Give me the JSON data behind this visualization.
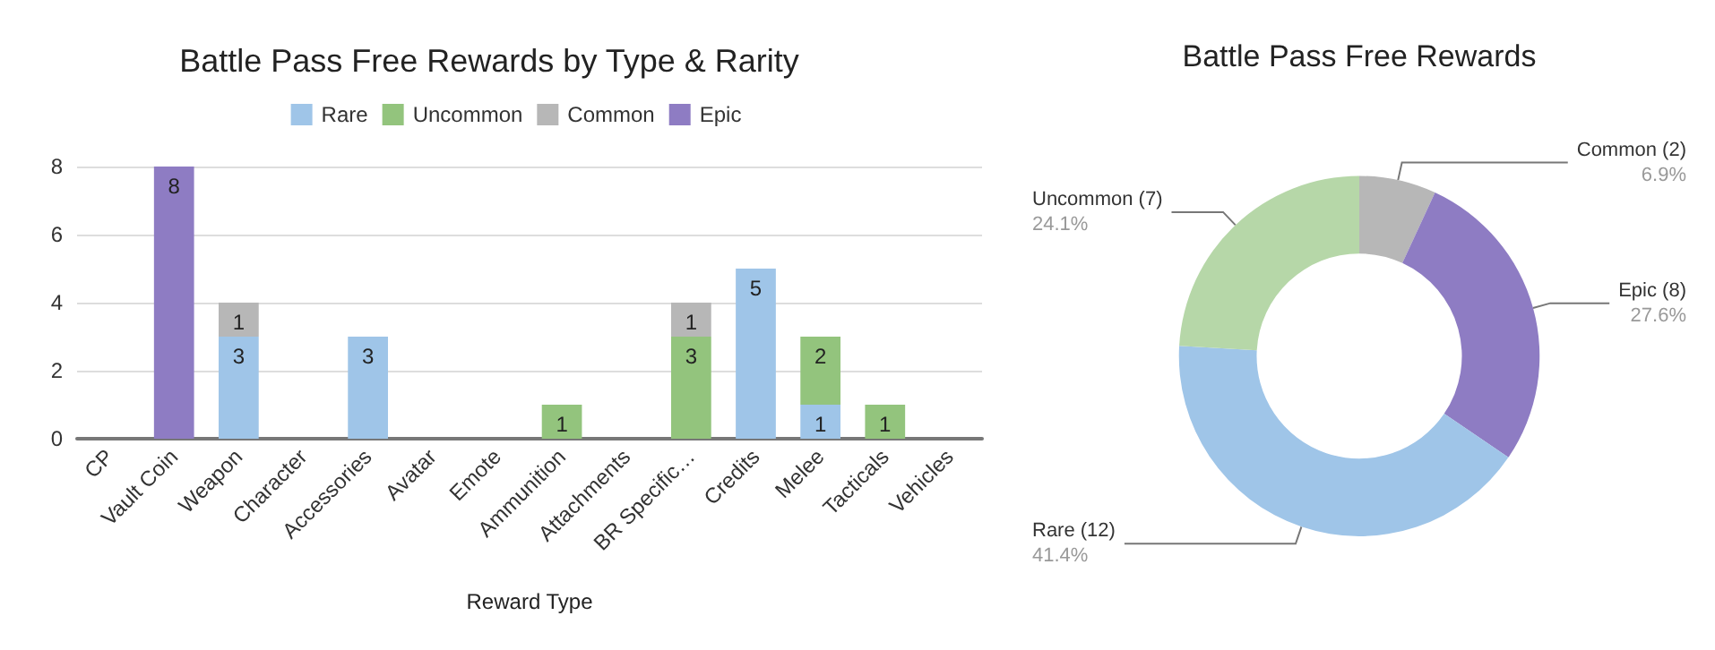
{
  "chart_data": [
    {
      "type": "bar",
      "title": "Battle Pass Free Rewards by Type & Rarity",
      "xlabel": "Reward Type",
      "stacked": true,
      "data_labels": true,
      "grid": "y",
      "legend": "top",
      "categories": [
        "CP",
        "Vault Coin",
        "Weapon",
        "Character",
        "Accessories",
        "Avatar",
        "Emote",
        "Ammunition",
        "Attachments",
        "BR Specific…",
        "Credits",
        "Melee",
        "Tacticals",
        "Vehicles"
      ],
      "series": [
        {
          "name": "Rare",
          "color": "#9fc5e8",
          "values": [
            null,
            null,
            3,
            null,
            3,
            null,
            null,
            null,
            null,
            null,
            5,
            1,
            null,
            null
          ]
        },
        {
          "name": "Uncommon",
          "color": "#93c47d",
          "values": [
            null,
            null,
            null,
            null,
            null,
            null,
            null,
            1,
            null,
            3,
            null,
            2,
            1,
            null
          ]
        },
        {
          "name": "Common",
          "color": "#b7b7b7",
          "values": [
            null,
            null,
            1,
            null,
            null,
            null,
            null,
            null,
            null,
            1,
            null,
            null,
            null,
            null
          ]
        },
        {
          "name": "Epic",
          "color": "#8e7cc3",
          "values": [
            null,
            8,
            null,
            null,
            null,
            null,
            null,
            null,
            null,
            null,
            null,
            null,
            null,
            null
          ]
        }
      ],
      "ylim": [
        0,
        8
      ],
      "yticks": [
        0,
        2,
        4,
        6,
        8
      ]
    },
    {
      "type": "donut",
      "title": "Battle Pass Free Rewards",
      "categories": [
        "Common (2)",
        "Epic (8)",
        "Rare (12)",
        "Uncommon (7)"
      ],
      "values": [
        6.9,
        27.6,
        41.4,
        24.1
      ],
      "value_labels": [
        "6.9%",
        "27.6%",
        "41.4%",
        "24.1%"
      ],
      "colors": [
        "#b7b7b7",
        "#8e7cc3",
        "#9fc5e8",
        "#b6d7a8"
      ]
    }
  ]
}
